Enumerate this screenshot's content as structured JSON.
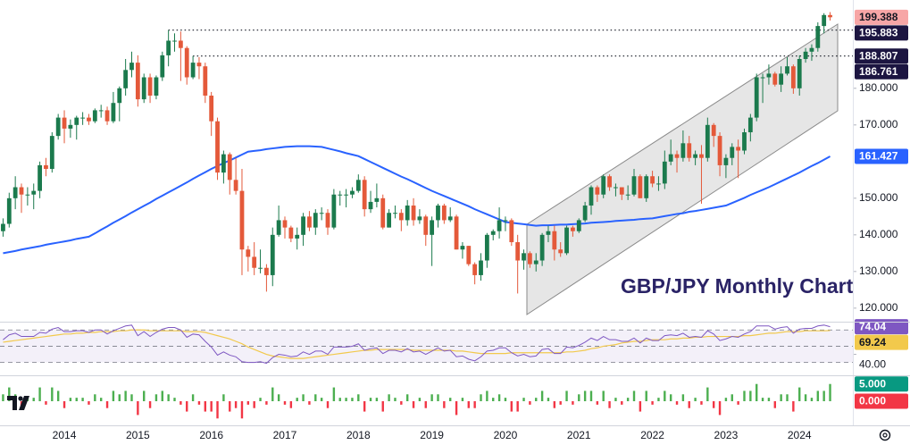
{
  "chart_data": {
    "type": "candlestick",
    "annotation": "GBP/JPY Monthly Chart",
    "categories": [
      null,
      null,
      null,
      null,
      null,
      null,
      null,
      null,
      null,
      null,
      "2014",
      null,
      null,
      null,
      null,
      null,
      null,
      null,
      null,
      null,
      null,
      null,
      "2015",
      null,
      null,
      null,
      null,
      null,
      null,
      null,
      null,
      null,
      null,
      null,
      "2016",
      null,
      null,
      null,
      null,
      null,
      null,
      null,
      null,
      null,
      null,
      null,
      "2017",
      null,
      null,
      null,
      null,
      null,
      null,
      null,
      null,
      null,
      null,
      null,
      "2018",
      null,
      null,
      null,
      null,
      null,
      null,
      null,
      null,
      null,
      null,
      null,
      "2019",
      null,
      null,
      null,
      null,
      null,
      null,
      null,
      null,
      null,
      null,
      null,
      "2020",
      null,
      null,
      null,
      null,
      null,
      null,
      null,
      null,
      null,
      null,
      null,
      "2021",
      null,
      null,
      null,
      null,
      null,
      null,
      null,
      null,
      null,
      null,
      null,
      "2022",
      null,
      null,
      null,
      null,
      null,
      null,
      null,
      null,
      null,
      null,
      null,
      "2023",
      null,
      null,
      null,
      null,
      null,
      null,
      null,
      null,
      null,
      null,
      null,
      "2024",
      null,
      null,
      null,
      null,
      null
    ],
    "open": [
      141,
      143,
      150,
      153,
      151,
      151,
      152,
      159,
      158,
      167,
      172,
      169,
      170,
      172,
      172,
      171,
      174,
      174,
      171,
      176,
      180,
      185,
      187,
      177,
      183,
      178,
      183,
      189,
      193,
      193,
      191,
      183,
      187,
      186,
      178,
      171,
      157,
      162,
      155,
      152,
      136,
      134,
      131,
      131,
      129,
      140,
      144,
      142,
      139,
      140,
      145,
      142,
      146,
      146,
      142,
      151,
      151,
      151,
      152,
      155,
      147,
      149,
      150,
      142,
      146,
      146,
      144,
      148,
      144,
      145,
      140,
      144,
      148,
      144,
      145,
      136,
      137,
      132,
      129,
      133,
      140,
      141,
      144,
      144,
      138,
      133,
      135,
      132,
      133,
      140,
      141,
      136,
      135,
      142,
      141,
      144,
      148,
      153,
      151,
      156,
      153,
      153,
      151,
      151,
      156,
      150,
      156,
      154,
      154,
      160,
      162,
      161,
      165,
      161,
      162,
      161,
      170,
      167,
      159,
      161,
      164,
      163,
      168,
      172,
      183,
      183,
      184,
      181,
      184,
      186,
      180,
      188,
      190,
      191,
      197,
      200
    ],
    "high": [
      144.5,
      151.5,
      156,
      154,
      153,
      154,
      160,
      161,
      168,
      173,
      174,
      171.5,
      172.5,
      173.5,
      173,
      174.5,
      175.5,
      175,
      179,
      180.5,
      188,
      190,
      189,
      184,
      184,
      183.5,
      190,
      195.9,
      195,
      195.5,
      191.5,
      188.8,
      188.5,
      187,
      179,
      172,
      163,
      162.5,
      161,
      158,
      137,
      138,
      136,
      132,
      142,
      148,
      145,
      142.5,
      142,
      146,
      146.5,
      147,
      147.5,
      147,
      152.5,
      152,
      152.5,
      153,
      156.5,
      156,
      152,
      154,
      151,
      147,
      148,
      147,
      149.5,
      150,
      147,
      145.5,
      145,
      148.5,
      148.5,
      147.5,
      145.5,
      138,
      137,
      132.5,
      135,
      140.5,
      141.5,
      147.5,
      145,
      144.5,
      140,
      136,
      135.5,
      135,
      140.5,
      142.5,
      142.5,
      138,
      142.5,
      142.5,
      144.5,
      149,
      153.5,
      153.5,
      156.5,
      156.5,
      154,
      153,
      153.5,
      158,
      156.5,
      156.5,
      157.5,
      156,
      163,
      166,
      163,
      168.5,
      167,
      163,
      164.5,
      172,
      170.5,
      168,
      162,
      165,
      166,
      169,
      173,
      184,
      184,
      186.5,
      184.5,
      186,
      188.5,
      186.5,
      189,
      191,
      192,
      198,
      200.5,
      200.8
    ],
    "low": [
      139.5,
      142,
      147,
      146,
      148,
      147,
      150,
      156,
      157,
      166,
      165,
      166.5,
      166,
      170,
      170,
      170.5,
      172,
      170,
      170.5,
      171,
      178,
      183,
      175,
      176,
      176,
      177,
      182,
      186,
      190,
      182,
      181,
      182.5,
      182.5,
      176,
      167,
      155,
      154,
      151,
      151,
      129,
      130,
      129,
      129.5,
      124.5,
      126,
      139.5,
      139,
      138,
      136,
      137,
      141,
      140,
      144,
      140,
      141.5,
      148,
      147.5,
      150,
      151.5,
      145,
      146,
      147.5,
      141.5,
      142,
      144.5,
      141,
      142.5,
      142.5,
      143,
      137,
      131.5,
      142,
      143,
      143.5,
      136,
      133.5,
      131.5,
      126.5,
      127.5,
      131,
      138.5,
      139,
      141,
      137,
      124,
      130.5,
      131,
      130,
      131.5,
      138,
      133,
      134,
      134.5,
      139.5,
      140.5,
      143.5,
      145.5,
      149,
      150,
      152,
      150.5,
      149.5,
      149.5,
      150.5,
      150,
      149,
      153,
      152,
      152.5,
      159,
      157,
      160,
      160,
      159,
      148.5,
      160,
      164,
      156,
      155.5,
      159,
      155.5,
      162,
      165.5,
      171,
      176,
      181,
      180.5,
      179,
      183.5,
      178.5,
      178,
      187,
      187.5,
      190,
      195,
      198.5
    ],
    "close": [
      143,
      150,
      153,
      151,
      151,
      152,
      159,
      158,
      167,
      172,
      169,
      170,
      172,
      172,
      171,
      174,
      174,
      171,
      176,
      180,
      185,
      187,
      177,
      183,
      178,
      183,
      189,
      193,
      193,
      191,
      183,
      187,
      186,
      178,
      171,
      157,
      162,
      155,
      152,
      136,
      134,
      131,
      131,
      129,
      140,
      144,
      142,
      139,
      140,
      145,
      142,
      146,
      146,
      142,
      151,
      151,
      151,
      152,
      155,
      147,
      149,
      150,
      142,
      146,
      146,
      144,
      148,
      144,
      145,
      140,
      144,
      148,
      144,
      145,
      136,
      137,
      132,
      129,
      133,
      140,
      141,
      144,
      144,
      138,
      133,
      135,
      132,
      133,
      140,
      141,
      136,
      135,
      142,
      141,
      144,
      148,
      153,
      151,
      156,
      153,
      153,
      151,
      151,
      156,
      150,
      156,
      154,
      154,
      160,
      162,
      161,
      165,
      161,
      162,
      161,
      170,
      167,
      159,
      161,
      164,
      163,
      168,
      172,
      183,
      183,
      184,
      181,
      184,
      186,
      180,
      188,
      190,
      191,
      197,
      200,
      199.388
    ],
    "up_color": "#1b7a4d",
    "down_color": "#e4593a",
    "ylim": [
      116.3,
      204.1
    ],
    "yticks": [
      {
        "value": 120,
        "label": "120.000"
      },
      {
        "value": 130,
        "label": "130.000"
      },
      {
        "value": 140,
        "label": "140.000"
      },
      {
        "value": 150,
        "label": "150.000"
      },
      {
        "value": 170,
        "label": "170.000"
      },
      {
        "value": 180,
        "label": "180.000"
      }
    ],
    "levels": [
      195.883,
      188.807
    ],
    "channel_price": 186.761,
    "ma": {
      "color": "#2962ff",
      "values": [
        135,
        135.3,
        135.6,
        136,
        136.3,
        136.6,
        136.9,
        137.3,
        137.6,
        137.9,
        138.2,
        138.5,
        138.9,
        139.2,
        139.5,
        140.4,
        141.4,
        142.3,
        143.3,
        144.2,
        145.1,
        146.1,
        147,
        147.9,
        148.8,
        149.8,
        150.7,
        151.6,
        152.5,
        153.4,
        154.3,
        155.3,
        156.2,
        157.1,
        158,
        158.8,
        159.6,
        160.3,
        161.1,
        161.9,
        162.7,
        162.9,
        163.1,
        163.4,
        163.6,
        163.8,
        164,
        164.1,
        164.2,
        164.2,
        164.2,
        164.1,
        164,
        163.6,
        163.2,
        162.8,
        162.3,
        161.9,
        161.5,
        160.7,
        159.9,
        159.1,
        158.3,
        157.5,
        156.7,
        155.9,
        155.2,
        154.4,
        153.6,
        152.8,
        152,
        151.3,
        150.6,
        149.9,
        149.2,
        148.5,
        147.8,
        147,
        146.3,
        145.6,
        144.9,
        144.2,
        143.5,
        143.3,
        143.1,
        142.9,
        142.7,
        142.5,
        142.6,
        142.6,
        142.7,
        142.8,
        142.8,
        142.9,
        143,
        143.1,
        143.3,
        143.4,
        143.5,
        143.6,
        143.8,
        143.9,
        144,
        144.1,
        144.3,
        144.4,
        144.5,
        144.8,
        145.1,
        145.4,
        145.7,
        145.9,
        146.3,
        146.5,
        146.8,
        147.1,
        147.4,
        147.7,
        148,
        148.7,
        149.4,
        150.1,
        150.9,
        151.6,
        152.3,
        153,
        153.8,
        154.6,
        155.4,
        156.2,
        157,
        157.9,
        158.8,
        159.6,
        160.5,
        161.427
      ]
    },
    "rsi": {
      "ylim": [
        16.4,
        78
      ],
      "yticks": [
        {
          "value": 40,
          "label": "40.00"
        }
      ],
      "bands": [
        30,
        50,
        70
      ],
      "color": "#7e57c2",
      "ma_color": "#f2c94c",
      "values": [
        58,
        64,
        66,
        62,
        62,
        62,
        67,
        66,
        71,
        73,
        68,
        68,
        69,
        69,
        67,
        70,
        70,
        65,
        69,
        72,
        75,
        76,
        63,
        68,
        62,
        67,
        71,
        73,
        73,
        70,
        61,
        65,
        64,
        56,
        49,
        39,
        43,
        39,
        37,
        31,
        30,
        30,
        31,
        29,
        36,
        40,
        39,
        37,
        38,
        43,
        40,
        44,
        44,
        40,
        49,
        49,
        49,
        50,
        53,
        45,
        47,
        48,
        41,
        45,
        45,
        43,
        47,
        43,
        44,
        40,
        44,
        48,
        44,
        45,
        37,
        38,
        34,
        32,
        37,
        44,
        45,
        48,
        48,
        42,
        38,
        40,
        37,
        38,
        46,
        47,
        41,
        41,
        49,
        48,
        51,
        55,
        60,
        57,
        62,
        58,
        58,
        56,
        56,
        60,
        54,
        60,
        57,
        57,
        63,
        64,
        63,
        66,
        61,
        62,
        61,
        69,
        65,
        57,
        59,
        62,
        61,
        65,
        68,
        75,
        75,
        75,
        71,
        73,
        74,
        66,
        71,
        72,
        72,
        75,
        76,
        74.04
      ],
      "ma_values": [
        55,
        56,
        57,
        58,
        59,
        60,
        61,
        62,
        63,
        64,
        65,
        65,
        66,
        66,
        67,
        67,
        68,
        68,
        68,
        69,
        69,
        70,
        70,
        70,
        69,
        69,
        69,
        69,
        69,
        69,
        68,
        68,
        68,
        67,
        65,
        63,
        61,
        59,
        56,
        53,
        49,
        46,
        43,
        40,
        38,
        37,
        36,
        35,
        35,
        35,
        36,
        37,
        38,
        39,
        40,
        41,
        42,
        43,
        44,
        45,
        45,
        46,
        46,
        46,
        46,
        46,
        46,
        45,
        45,
        45,
        45,
        45,
        45,
        45,
        44,
        44,
        43,
        42,
        41,
        41,
        41,
        41,
        41,
        42,
        42,
        42,
        42,
        42,
        42,
        42,
        42,
        42,
        43,
        43,
        44,
        45,
        47,
        48,
        50,
        51,
        52,
        54,
        55,
        56,
        56,
        57,
        58,
        58,
        58,
        59,
        59,
        60,
        60,
        61,
        61,
        62,
        62,
        62,
        62,
        62,
        62,
        63,
        63,
        64,
        65,
        66,
        66,
        67,
        68,
        68,
        68,
        69,
        69,
        69,
        69,
        69.24
      ]
    },
    "osc": {
      "ylim": [
        -7,
        7
      ],
      "up_color": "#4caf50",
      "down_color": "#f23645",
      "labels": [
        {
          "value": 5,
          "label": "5.000"
        },
        {
          "value": 0,
          "label": "0.000"
        }
      ],
      "values": [
        2,
        4,
        2,
        -2,
        1,
        1,
        4,
        -1,
        4,
        3,
        -2,
        1,
        1,
        1,
        -1,
        2,
        1,
        -2,
        3,
        2,
        3,
        2,
        -4,
        3,
        -2,
        2,
        3,
        2,
        1,
        -1,
        -3,
        2,
        -1,
        -3,
        -3,
        -5,
        2,
        -3,
        -2,
        -5,
        -1,
        -2,
        1,
        -1,
        4,
        2,
        -1,
        -2,
        1,
        2,
        -1,
        2,
        1,
        -2,
        4,
        1,
        1,
        1,
        2,
        -3,
        1,
        1,
        -3,
        2,
        1,
        -1,
        2,
        -2,
        1,
        -2,
        2,
        2,
        -2,
        1,
        -4,
        1,
        -2,
        -2,
        2,
        3,
        1,
        2,
        1,
        -3,
        -3,
        1,
        -1,
        1,
        3,
        1,
        -2,
        -1,
        3,
        -1,
        2,
        3,
        3,
        -1,
        3,
        -2,
        1,
        -1,
        1,
        3,
        -3,
        3,
        -1,
        1,
        3,
        2,
        -1,
        2,
        -2,
        1,
        -1,
        4,
        -2,
        -4,
        1,
        2,
        -1,
        3,
        3,
        5,
        1,
        1,
        -2,
        2,
        2,
        -3,
        4,
        2,
        1,
        3,
        3,
        5
      ]
    }
  }
}
